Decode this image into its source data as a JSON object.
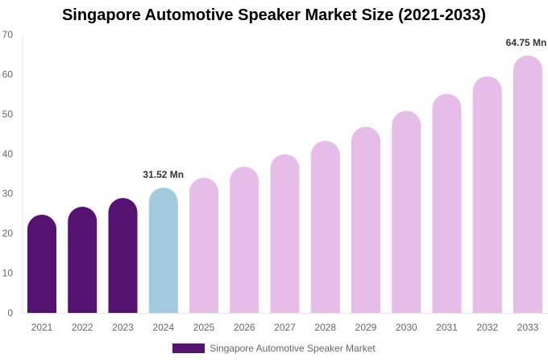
{
  "chart_data": {
    "type": "bar",
    "title": "Singapore Automotive Speaker Market Size (2021-2033)",
    "categories": [
      "2021",
      "2022",
      "2023",
      "2024",
      "2025",
      "2026",
      "2027",
      "2028",
      "2029",
      "2030",
      "2031",
      "2032",
      "2033"
    ],
    "series": [
      {
        "name": "Singapore Automotive Speaker Market",
        "values": [
          24.7,
          26.7,
          28.9,
          31.52,
          34.0,
          36.8,
          39.9,
          43.3,
          46.8,
          50.8,
          55.1,
          59.5,
          64.75
        ]
      }
    ],
    "data_labels": {
      "3": "31.52 Mn",
      "12": "64.75 Mn"
    },
    "ylim": [
      0,
      70
    ],
    "yticks": [
      0,
      10,
      20,
      30,
      40,
      50,
      60,
      70
    ],
    "grid": false,
    "legend": "bottom",
    "colors": {
      "historical": "#541271",
      "base_year": "#a3cade",
      "forecast": "#e6bce8"
    }
  }
}
